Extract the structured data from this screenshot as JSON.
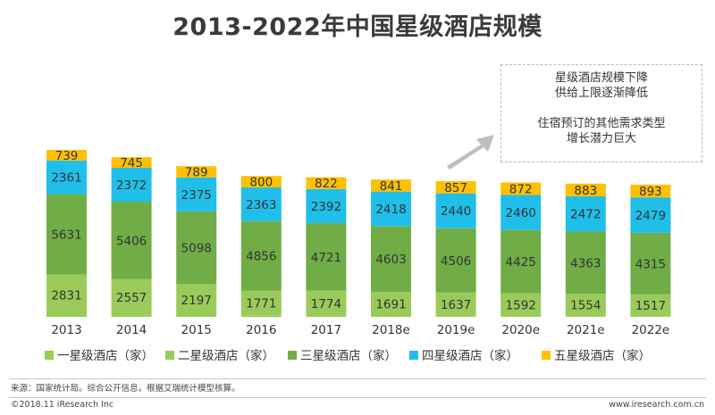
{
  "title": "2013-2022年中国星级酒店规模",
  "callout": [
    "星级酒店规模下降",
    "供给上限逐渐降低",
    "",
    "住宿预订的其他需求类型",
    "增长潜力巨大"
  ],
  "footer": {
    "source": "来源：国家统计局。综合公开信息，根据艾瑞统计模型核算。",
    "copyright": "©2018.11 iResearch Inc",
    "website": "www.iresearch.com.cn"
  },
  "chart_data": {
    "type": "bar",
    "stacked": true,
    "categories": [
      "2013",
      "2014",
      "2015",
      "2016",
      "2017",
      "2018e",
      "2019e",
      "2020e",
      "2021e",
      "2022e"
    ],
    "series": [
      {
        "name": "一星级酒店（家）",
        "color": "#92d050",
        "values": [
          125,
          99,
          91,
          71,
          66,
          62,
          60,
          58,
          56,
          54
        ]
      },
      {
        "name": "二星级酒店（家）",
        "color": "#9acb5a",
        "values": [
          2831,
          2557,
          2197,
          1771,
          1774,
          1691,
          1637,
          1592,
          1554,
          1517
        ]
      },
      {
        "name": "三星级酒店（家）",
        "color": "#70ad47",
        "values": [
          5631,
          5406,
          5098,
          4856,
          4721,
          4603,
          4506,
          4425,
          4363,
          4315
        ]
      },
      {
        "name": "四星级酒店（家）",
        "color": "#1fbfea",
        "values": [
          2361,
          2372,
          2375,
          2363,
          2392,
          2418,
          2440,
          2460,
          2472,
          2479
        ]
      },
      {
        "name": "五星级酒店（家）",
        "color": "#ffc000",
        "values": [
          739,
          745,
          789,
          800,
          822,
          841,
          857,
          872,
          883,
          893
        ]
      }
    ],
    "legend_position": "bottom",
    "grid": false,
    "accent_arrow_color": "#bfbfbf"
  }
}
